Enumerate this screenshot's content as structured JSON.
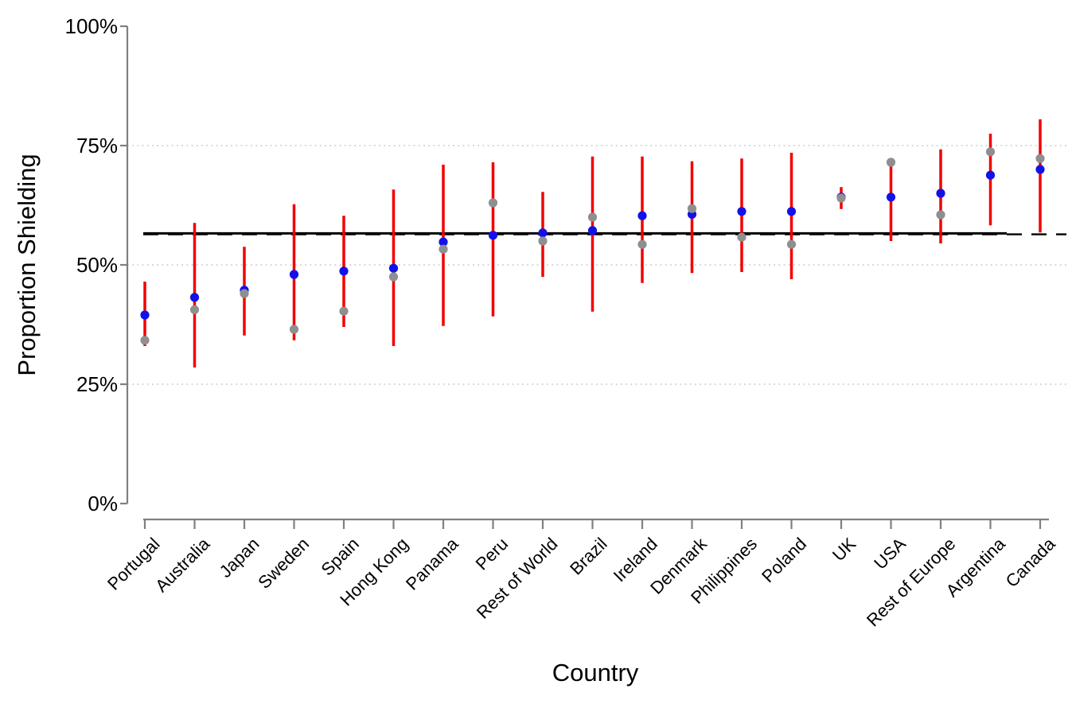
{
  "chart_data": {
    "type": "scatter",
    "title": "",
    "xlabel": "Country",
    "ylabel": "Proportion Shielding",
    "ylim": [
      0,
      100
    ],
    "ytick_values": [
      0,
      25,
      50,
      75,
      100
    ],
    "ytick_labels": [
      "0%",
      "25%",
      "50%",
      "75%",
      "100%"
    ],
    "grid_values": [
      25,
      50,
      75
    ],
    "grid_style": "dotted-horizontal",
    "legend_position": "none",
    "categories": [
      "Portugal",
      "Australia",
      "Japan",
      "Sweden",
      "Spain",
      "Hong Kong",
      "Panama",
      "Peru",
      "Rest of World",
      "Brazil",
      "Ireland",
      "Denmark",
      "Philippines",
      "Poland",
      "UK",
      "USA",
      "Rest of Europe",
      "Argentina",
      "Canada"
    ],
    "series": [
      {
        "name": "blue-point-estimate",
        "marker": "circle",
        "color": "#1212e8",
        "values": [
          39.5,
          43.2,
          44.7,
          48.0,
          48.7,
          49.3,
          54.8,
          56.2,
          56.7,
          57.2,
          60.3,
          60.6,
          61.2,
          61.2,
          64.2,
          64.2,
          65.0,
          68.8,
          70.0
        ]
      },
      {
        "name": "gray-point-estimate",
        "marker": "circle",
        "color": "#8f8f8f",
        "values": [
          34.2,
          40.6,
          44.0,
          36.5,
          40.3,
          47.5,
          53.3,
          63.0,
          55.0,
          60.0,
          54.3,
          61.8,
          55.8,
          54.3,
          64.0,
          71.5,
          60.5,
          73.7,
          72.3
        ]
      }
    ],
    "error_bars": {
      "color": "#f20000",
      "low": [
        33.0,
        28.5,
        35.2,
        34.2,
        37.0,
        33.0,
        37.2,
        39.2,
        47.5,
        40.2,
        46.2,
        48.3,
        48.5,
        47.0,
        61.7,
        55.0,
        54.5,
        58.3,
        56.8
      ],
      "high": [
        46.5,
        58.8,
        53.8,
        62.7,
        60.3,
        65.8,
        71.0,
        71.5,
        65.3,
        72.7,
        72.7,
        71.7,
        72.3,
        73.5,
        66.3,
        70.8,
        74.2,
        77.5,
        80.5
      ]
    },
    "reference_lines": [
      {
        "style": "dashed",
        "value": 56.4,
        "color": "#000000"
      },
      {
        "style": "solid",
        "value": 56.6,
        "color": "#000000"
      }
    ],
    "axis_color": "#808080",
    "gridline_color": "#c9c9c9"
  }
}
